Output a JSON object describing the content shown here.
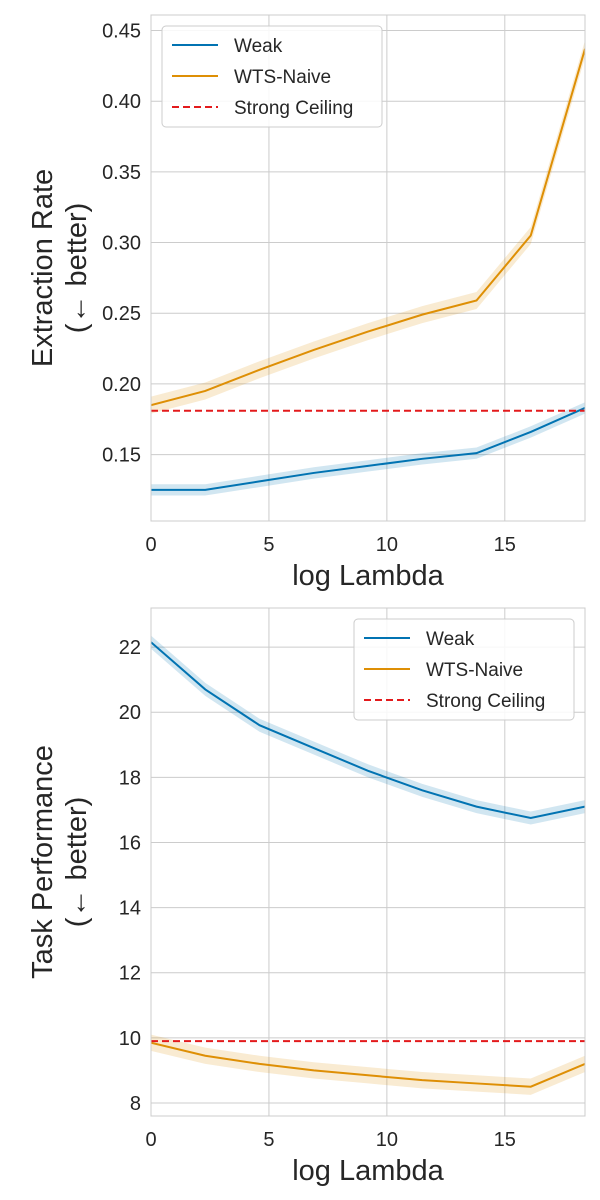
{
  "chart_data": [
    {
      "type": "line",
      "xlabel": "log Lambda",
      "ylabel_lines": [
        "Extraction Rate",
        "(← better)"
      ],
      "xlim": [
        0,
        18.4
      ],
      "ylim": [
        0.103,
        0.461
      ],
      "xticks": [
        0,
        5,
        10,
        15
      ],
      "xtick_labels": [
        "0",
        "5",
        "10",
        "15"
      ],
      "yticks": [
        0.15,
        0.2,
        0.25,
        0.3,
        0.35,
        0.4,
        0.45
      ],
      "ytick_labels": [
        "0.15",
        "0.20",
        "0.25",
        "0.30",
        "0.35",
        "0.40",
        "0.45"
      ],
      "legend_position": "upper-left",
      "series": [
        {
          "name": "Weak",
          "color": "#0173b2",
          "style": "solid",
          "x": [
            0,
            2.3,
            4.6,
            6.9,
            9.2,
            11.5,
            13.8,
            16.1,
            18.4
          ],
          "y": [
            0.125,
            0.125,
            0.131,
            0.137,
            0.142,
            0.147,
            0.151,
            0.166,
            0.183
          ],
          "band": 0.004
        },
        {
          "name": "WTS-Naive",
          "color": "#de8f05",
          "style": "solid",
          "x": [
            0,
            2.3,
            4.6,
            6.9,
            9.2,
            11.5,
            13.8,
            16.1,
            18.4
          ],
          "y": [
            0.185,
            0.195,
            0.21,
            0.224,
            0.237,
            0.249,
            0.259,
            0.305,
            0.437
          ],
          "band": 0.006
        },
        {
          "name": "Strong Ceiling",
          "color": "#e31a1c",
          "style": "dashed",
          "x": [
            0,
            18.4
          ],
          "y": [
            0.181,
            0.181
          ],
          "band": 0
        }
      ]
    },
    {
      "type": "line",
      "xlabel": "log Lambda",
      "ylabel_lines": [
        "Task Performance",
        "(← better)"
      ],
      "xlim": [
        0,
        18.4
      ],
      "ylim": [
        7.6,
        23.2
      ],
      "xticks": [
        0,
        5,
        10,
        15
      ],
      "xtick_labels": [
        "0",
        "5",
        "10",
        "15"
      ],
      "yticks": [
        8,
        10,
        12,
        14,
        16,
        18,
        20,
        22
      ],
      "ytick_labels": [
        "8",
        "10",
        "12",
        "14",
        "16",
        "18",
        "20",
        "22"
      ],
      "legend_position": "upper-right",
      "series": [
        {
          "name": "Weak",
          "color": "#0173b2",
          "style": "solid",
          "x": [
            0,
            2.3,
            4.6,
            6.9,
            9.2,
            11.5,
            13.8,
            16.1,
            18.4
          ],
          "y": [
            22.15,
            20.7,
            19.6,
            18.9,
            18.2,
            17.6,
            17.1,
            16.75,
            17.1
          ],
          "band": 0.2
        },
        {
          "name": "WTS-Naive",
          "color": "#de8f05",
          "style": "solid",
          "x": [
            0,
            2.3,
            4.6,
            6.9,
            9.2,
            11.5,
            13.8,
            16.1,
            18.4
          ],
          "y": [
            9.85,
            9.45,
            9.2,
            9.0,
            8.85,
            8.7,
            8.6,
            8.5,
            9.2
          ],
          "band": 0.25
        },
        {
          "name": "Strong Ceiling",
          "color": "#e31a1c",
          "style": "dashed",
          "x": [
            0,
            18.4
          ],
          "y": [
            9.9,
            9.9
          ],
          "band": 0
        }
      ]
    }
  ]
}
